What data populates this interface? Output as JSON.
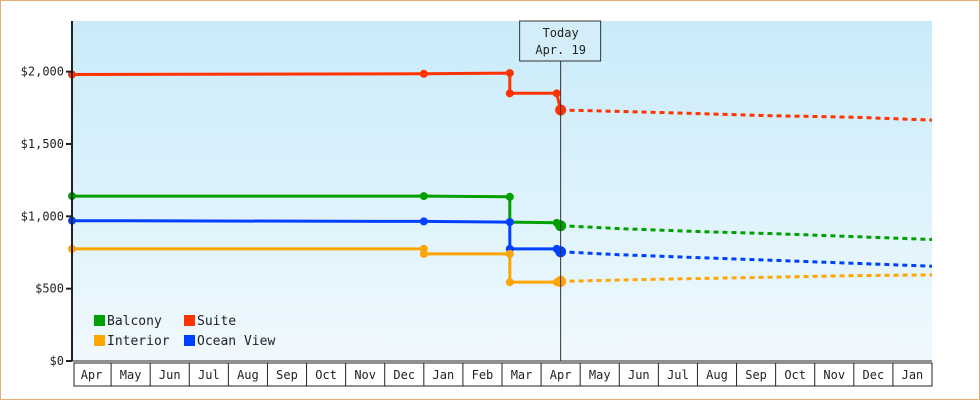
{
  "chart_data": {
    "type": "line",
    "title": "",
    "xlabel": "",
    "ylabel": "",
    "ylim": [
      0,
      2350
    ],
    "y_ticks": [
      {
        "value": 0,
        "label": "$0"
      },
      {
        "value": 500,
        "label": "$500"
      },
      {
        "value": 1000,
        "label": "$1,000"
      },
      {
        "value": 1500,
        "label": "$1,500"
      },
      {
        "value": 2000,
        "label": "$2,000"
      }
    ],
    "x_ticks": [
      "Apr",
      "May",
      "Jun",
      "Jul",
      "Aug",
      "Sep",
      "Oct",
      "Nov",
      "Dec",
      "Jan",
      "Feb",
      "Mar",
      "Apr",
      "May",
      "Jun",
      "Jul",
      "Aug",
      "Sep",
      "Oct",
      "Nov",
      "Dec",
      "Jan"
    ],
    "x_range_months": [
      0,
      22
    ],
    "grid": false,
    "legend_position": "bottom-left",
    "today": {
      "line1": "Today",
      "line2": "Apr. 19",
      "month_index": 12.5
    },
    "series": [
      {
        "name": "Suite",
        "color": "#ff3300",
        "steps": [
          [
            0,
            1980
          ],
          [
            9,
            1985
          ],
          [
            11.2,
            1990
          ],
          [
            11.2,
            1850
          ],
          [
            12.4,
            1850
          ],
          [
            12.5,
            1735
          ]
        ],
        "forecast": [
          [
            12.5,
            1735
          ],
          [
            14,
            1725
          ],
          [
            16,
            1710
          ],
          [
            18,
            1695
          ],
          [
            20,
            1685
          ],
          [
            22,
            1665
          ]
        ]
      },
      {
        "name": "Balcony",
        "color": "#00a000",
        "steps": [
          [
            0,
            1140
          ],
          [
            9,
            1140
          ],
          [
            11.2,
            1135
          ],
          [
            11.2,
            960
          ],
          [
            12.4,
            955
          ],
          [
            12.5,
            935
          ]
        ],
        "forecast": [
          [
            12.5,
            935
          ],
          [
            14,
            915
          ],
          [
            16,
            895
          ],
          [
            18,
            880
          ],
          [
            20,
            860
          ],
          [
            22,
            840
          ]
        ]
      },
      {
        "name": "Ocean View",
        "color": "#0040ff",
        "steps": [
          [
            0,
            970
          ],
          [
            9,
            965
          ],
          [
            11.2,
            960
          ],
          [
            11.2,
            775
          ],
          [
            12.4,
            775
          ],
          [
            12.5,
            755
          ]
        ],
        "forecast": [
          [
            12.5,
            755
          ],
          [
            14,
            735
          ],
          [
            16,
            715
          ],
          [
            18,
            695
          ],
          [
            20,
            675
          ],
          [
            22,
            655
          ]
        ]
      },
      {
        "name": "Interior",
        "color": "#ffa500",
        "steps": [
          [
            0,
            775
          ],
          [
            9,
            775
          ],
          [
            9,
            740
          ],
          [
            11.2,
            740
          ],
          [
            11.2,
            545
          ],
          [
            12.4,
            545
          ],
          [
            12.5,
            550
          ]
        ],
        "forecast": [
          [
            12.5,
            550
          ],
          [
            14,
            560
          ],
          [
            16,
            570
          ],
          [
            18,
            580
          ],
          [
            20,
            590
          ],
          [
            22,
            595
          ]
        ]
      }
    ],
    "legend": [
      {
        "name": "Balcony",
        "color": "#00a000"
      },
      {
        "name": "Suite",
        "color": "#ff3300"
      },
      {
        "name": "Interior",
        "color": "#ffa500"
      },
      {
        "name": "Ocean View",
        "color": "#0040ff"
      }
    ]
  }
}
